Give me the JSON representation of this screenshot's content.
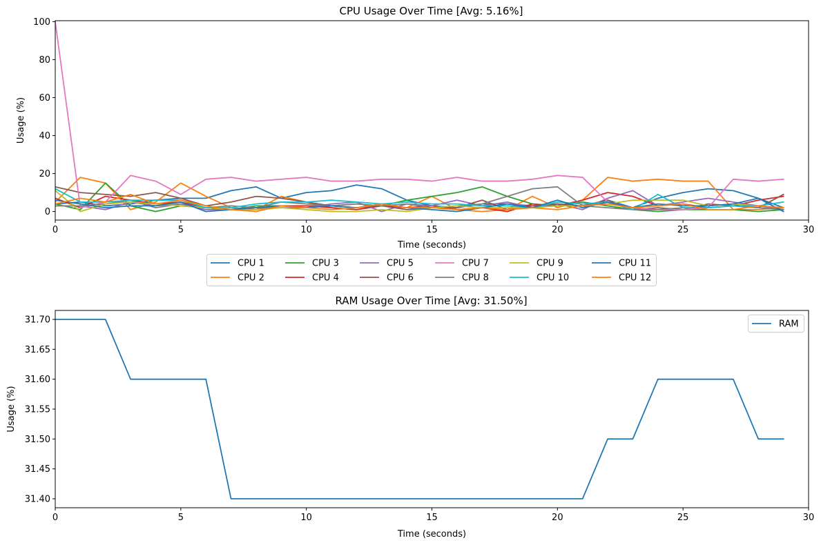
{
  "chart_data": [
    {
      "type": "line",
      "title": "CPU Usage Over Time [Avg: 5.16%]",
      "xlabel": "Time (seconds)",
      "ylabel": "Usage (%)",
      "xlim": [
        0,
        30
      ],
      "ylim": [
        -4.5,
        100.5
      ],
      "xticks": [
        0,
        5,
        10,
        15,
        20,
        25,
        30
      ],
      "yticks": [
        0,
        20,
        40,
        60,
        80,
        100
      ],
      "grid": false,
      "legend_placement": "below-center",
      "legend_columns": 6,
      "x": [
        0,
        1,
        2,
        3,
        4,
        5,
        6,
        7,
        8,
        9,
        10,
        11,
        12,
        13,
        14,
        15,
        16,
        17,
        18,
        19,
        20,
        21,
        22,
        23,
        24,
        25,
        26,
        27,
        28,
        29
      ],
      "series": [
        {
          "name": "CPU 1",
          "color": "#1f77b4",
          "values": [
            4,
            5,
            3,
            4,
            6,
            7,
            7,
            11,
            13,
            7,
            10,
            11,
            14,
            12,
            6,
            3,
            2,
            4,
            4,
            3,
            4,
            3,
            6,
            2,
            7,
            10,
            12,
            11,
            7,
            2
          ]
        },
        {
          "name": "CPU 2",
          "color": "#ff7f0e",
          "values": [
            5,
            18,
            15,
            1,
            5,
            15,
            8,
            2,
            1,
            8,
            5,
            2,
            1,
            3,
            2,
            8,
            1,
            0,
            1,
            8,
            2,
            6,
            18,
            16,
            17,
            16,
            16,
            1,
            1,
            2
          ]
        },
        {
          "name": "CPU 3",
          "color": "#2ca02c",
          "values": [
            4,
            1,
            15,
            3,
            0,
            3,
            2,
            1,
            3,
            3,
            3,
            3,
            4,
            3,
            6,
            8,
            10,
            13,
            8,
            4,
            3,
            5,
            3,
            1,
            0,
            1,
            1,
            1,
            0,
            1
          ]
        },
        {
          "name": "CPU 4",
          "color": "#d62728",
          "values": [
            7,
            2,
            8,
            6,
            4,
            5,
            2,
            1,
            1,
            3,
            3,
            2,
            1,
            3,
            2,
            3,
            1,
            2,
            0,
            4,
            3,
            6,
            10,
            8,
            3,
            4,
            2,
            3,
            6,
            8
          ]
        },
        {
          "name": "CPU 5",
          "color": "#9467bd",
          "values": [
            3,
            3,
            1,
            5,
            3,
            4,
            1,
            1,
            2,
            2,
            2,
            4,
            5,
            0,
            4,
            3,
            6,
            3,
            5,
            2,
            4,
            1,
            7,
            11,
            3,
            5,
            7,
            5,
            3,
            1
          ]
        },
        {
          "name": "CPU 6",
          "color": "#8c564b",
          "values": [
            13,
            10,
            9,
            8,
            10,
            7,
            3,
            5,
            8,
            7,
            5,
            3,
            2,
            3,
            1,
            2,
            2,
            6,
            1,
            3,
            4,
            3,
            6,
            1,
            2,
            1,
            4,
            3,
            2,
            9
          ]
        },
        {
          "name": "CPU 7",
          "color": "#e377c2",
          "values": [
            100,
            2,
            5,
            19,
            16,
            9,
            17,
            18,
            16,
            17,
            18,
            16,
            16,
            17,
            17,
            16,
            18,
            16,
            16,
            17,
            19,
            18,
            5,
            2,
            1,
            1,
            2,
            17,
            16,
            17
          ]
        },
        {
          "name": "CPU 8",
          "color": "#7f7f7f",
          "values": [
            3,
            3,
            4,
            6,
            2,
            4,
            2,
            3,
            2,
            5,
            4,
            3,
            4,
            3,
            4,
            2,
            3,
            4,
            8,
            12,
            13,
            3,
            2,
            1,
            1,
            2,
            2,
            3,
            2,
            1
          ]
        },
        {
          "name": "CPU 9",
          "color": "#bcbd22",
          "values": [
            11,
            0,
            4,
            5,
            4,
            3,
            2,
            1,
            1,
            2,
            1,
            0,
            0,
            1,
            0,
            2,
            3,
            2,
            2,
            2,
            3,
            3,
            4,
            6,
            6,
            6,
            3,
            4,
            3,
            2
          ]
        },
        {
          "name": "CPU 10",
          "color": "#17becf",
          "values": [
            12,
            5,
            5,
            6,
            6,
            6,
            2,
            2,
            4,
            5,
            5,
            6,
            5,
            4,
            5,
            4,
            4,
            3,
            3,
            2,
            5,
            4,
            5,
            1,
            9,
            2,
            2,
            3,
            3,
            5
          ]
        },
        {
          "name": "CPU 11",
          "color": "#1f77b4",
          "values": [
            6,
            4,
            2,
            3,
            3,
            5,
            0,
            1,
            2,
            3,
            2,
            3,
            2,
            4,
            2,
            1,
            0,
            2,
            4,
            2,
            6,
            2,
            5,
            2,
            4,
            3,
            3,
            4,
            7,
            0
          ]
        },
        {
          "name": "CPU 12",
          "color": "#ff7f0e",
          "values": [
            4,
            7,
            5,
            9,
            4,
            6,
            3,
            1,
            0,
            3,
            2,
            1,
            2,
            4,
            2,
            2,
            1,
            2,
            1,
            2,
            1,
            3,
            4,
            2,
            3,
            4,
            1,
            1,
            3,
            2
          ]
        }
      ]
    },
    {
      "type": "line",
      "title": "RAM Usage Over Time [Avg: 31.50%]",
      "xlabel": "Time (seconds)",
      "ylabel": "Usage (%)",
      "xlim": [
        0,
        30
      ],
      "ylim": [
        31.385,
        31.715
      ],
      "xticks": [
        0,
        5,
        10,
        15,
        20,
        25,
        30
      ],
      "yticks": [
        31.4,
        31.45,
        31.5,
        31.55,
        31.6,
        31.65,
        31.7
      ],
      "ytick_labels": [
        "31.40",
        "31.45",
        "31.50",
        "31.55",
        "31.60",
        "31.65",
        "31.70"
      ],
      "grid": false,
      "legend_placement": "top-right",
      "x": [
        0,
        1,
        2,
        3,
        4,
        5,
        6,
        7,
        8,
        9,
        10,
        11,
        12,
        13,
        14,
        15,
        16,
        17,
        18,
        19,
        20,
        21,
        22,
        23,
        24,
        25,
        26,
        27,
        28,
        29
      ],
      "series": [
        {
          "name": "RAM",
          "color": "#1f77b4",
          "values": [
            31.7,
            31.7,
            31.7,
            31.6,
            31.6,
            31.6,
            31.6,
            31.4,
            31.4,
            31.4,
            31.4,
            31.4,
            31.4,
            31.4,
            31.4,
            31.4,
            31.4,
            31.4,
            31.4,
            31.4,
            31.4,
            31.4,
            31.5,
            31.5,
            31.6,
            31.6,
            31.6,
            31.6,
            31.5,
            31.5
          ]
        }
      ]
    }
  ]
}
